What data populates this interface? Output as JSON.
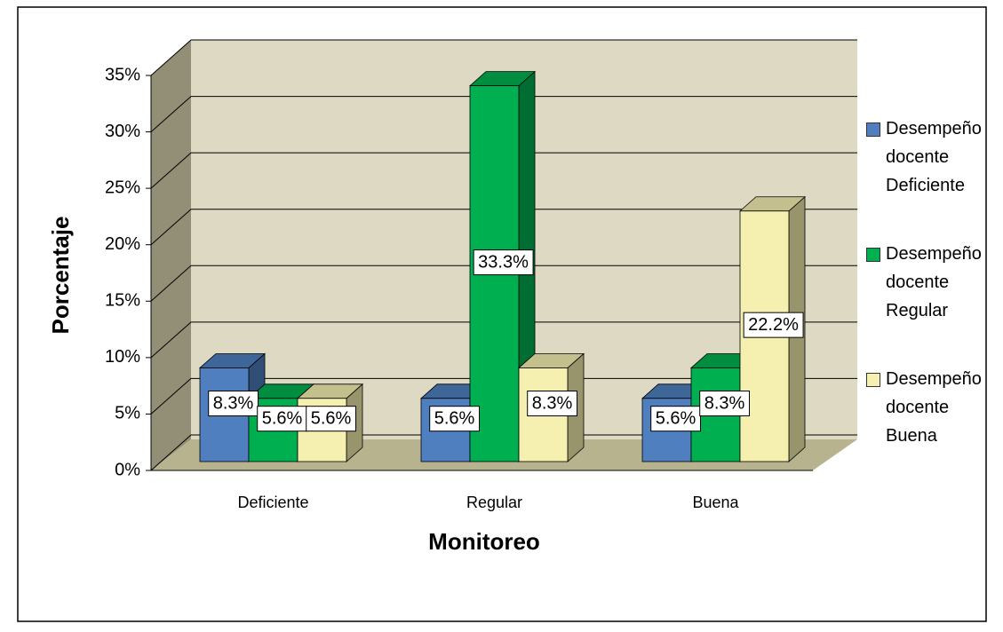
{
  "chart_data": {
    "type": "bar3d",
    "categories": [
      "Deficiente",
      "Regular",
      "Buena"
    ],
    "xlabel": "Monitoreo",
    "ylabel": "Porcentaje",
    "ylim": [
      0,
      35
    ],
    "yticks": [
      {
        "value": 0,
        "label": "0%"
      },
      {
        "value": 5,
        "label": "5%"
      },
      {
        "value": 10,
        "label": "10%"
      },
      {
        "value": 15,
        "label": "15%"
      },
      {
        "value": 20,
        "label": "20%"
      },
      {
        "value": 25,
        "label": "25%"
      },
      {
        "value": 30,
        "label": "30%"
      },
      {
        "value": 35,
        "label": "35%"
      }
    ],
    "grid": true,
    "legend": "right",
    "series": [
      {
        "name": "Desempeño docente Deficiente",
        "color": "#4f7fbf",
        "values": [
          8.3,
          5.6,
          5.6
        ],
        "value_labels": [
          "8.3%",
          "5.6%",
          "5.6%"
        ]
      },
      {
        "name": "Desempeño docente Regular",
        "color": "#00b050",
        "values": [
          5.6,
          33.3,
          8.3
        ],
        "value_labels": [
          "5.6%",
          "33.3%",
          "8.3%"
        ]
      },
      {
        "name": "Desempeño docente Buena",
        "color": "#f5f0b0",
        "values": [
          5.6,
          8.3,
          22.2
        ],
        "value_labels": [
          "5.6%",
          "8.3%",
          "22.2%"
        ]
      }
    ]
  }
}
